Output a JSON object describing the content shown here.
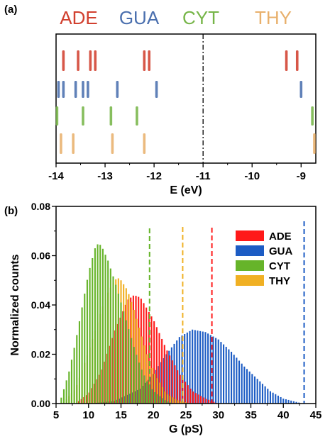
{
  "chart_data": [
    {
      "type": "scatter",
      "panel_label": "(a)",
      "xlabel": "E (eV)",
      "xlim": [
        -14,
        -8.7
      ],
      "xticks": [
        "-14",
        "-13",
        "-12",
        "-11",
        "-10",
        "-9"
      ],
      "reference_line_x": -11,
      "series": [
        {
          "name": "ADE",
          "color": "#d1402f",
          "values": [
            -13.85,
            -13.55,
            -13.3,
            -13.2,
            -12.2,
            -12.1,
            -9.3,
            -9.08
          ]
        },
        {
          "name": "GUA",
          "color": "#4a6fae",
          "values": [
            -13.95,
            -13.85,
            -13.6,
            -13.45,
            -13.35,
            -12.75,
            -11.95,
            -9.0
          ]
        },
        {
          "name": "CYT",
          "color": "#76b548",
          "values": [
            -13.98,
            -13.45,
            -12.88,
            -12.35,
            -8.77
          ]
        },
        {
          "name": "THY",
          "color": "#e8b06c",
          "values": [
            -13.9,
            -13.65,
            -12.85,
            -12.2,
            -8.73
          ]
        }
      ]
    },
    {
      "type": "bar",
      "panel_label": "(b)",
      "xlabel": "G (pS)",
      "ylabel": "Normalized counts",
      "xlim": [
        5,
        45
      ],
      "ylim": [
        0,
        0.08
      ],
      "xticks": [
        "5",
        "10",
        "15",
        "20",
        "25",
        "30",
        "35",
        "40",
        "45"
      ],
      "yticks": [
        "0.00",
        "0.02",
        "0.04",
        "0.06",
        "0.08"
      ],
      "legend_position": "top-right",
      "series": [
        {
          "name": "ADE",
          "color": "#ff1a1a",
          "x": [
            8,
            10,
            12,
            14,
            16,
            17,
            18,
            20,
            22,
            24,
            26,
            28,
            30
          ],
          "values": [
            0.0,
            0.004,
            0.013,
            0.029,
            0.042,
            0.044,
            0.043,
            0.034,
            0.022,
            0.012,
            0.005,
            0.002,
            0.0
          ],
          "mean": 29.0
        },
        {
          "name": "GUA",
          "color": "#1c5cc4",
          "x": [
            10,
            14,
            18,
            20,
            22,
            24,
            26,
            28,
            30,
            32,
            34,
            36,
            38,
            40,
            43
          ],
          "values": [
            0.0,
            0.001,
            0.006,
            0.012,
            0.02,
            0.027,
            0.03,
            0.029,
            0.026,
            0.021,
            0.015,
            0.01,
            0.005,
            0.002,
            0.0
          ],
          "mean": 43.2
        },
        {
          "name": "CYT",
          "color": "#66b42a",
          "x": [
            5.5,
            6,
            7,
            8,
            9,
            10,
            11,
            11.5,
            12,
            13,
            14,
            15,
            16,
            17,
            18,
            19,
            20,
            21,
            22,
            23
          ],
          "values": [
            0.0,
            0.004,
            0.013,
            0.025,
            0.039,
            0.053,
            0.063,
            0.065,
            0.064,
            0.058,
            0.05,
            0.041,
            0.032,
            0.023,
            0.015,
            0.009,
            0.005,
            0.003,
            0.001,
            0.0
          ],
          "mean": 19.4
        },
        {
          "name": "THY",
          "color": "#f0b023",
          "x": [
            6,
            8,
            10,
            12,
            13,
            14,
            14.5,
            15,
            16,
            17,
            18,
            19,
            20,
            22,
            24,
            26
          ],
          "values": [
            0.0,
            0.006,
            0.021,
            0.038,
            0.045,
            0.05,
            0.051,
            0.05,
            0.046,
            0.038,
            0.029,
            0.02,
            0.013,
            0.004,
            0.001,
            0.0
          ],
          "mean": 24.5
        }
      ]
    }
  ]
}
